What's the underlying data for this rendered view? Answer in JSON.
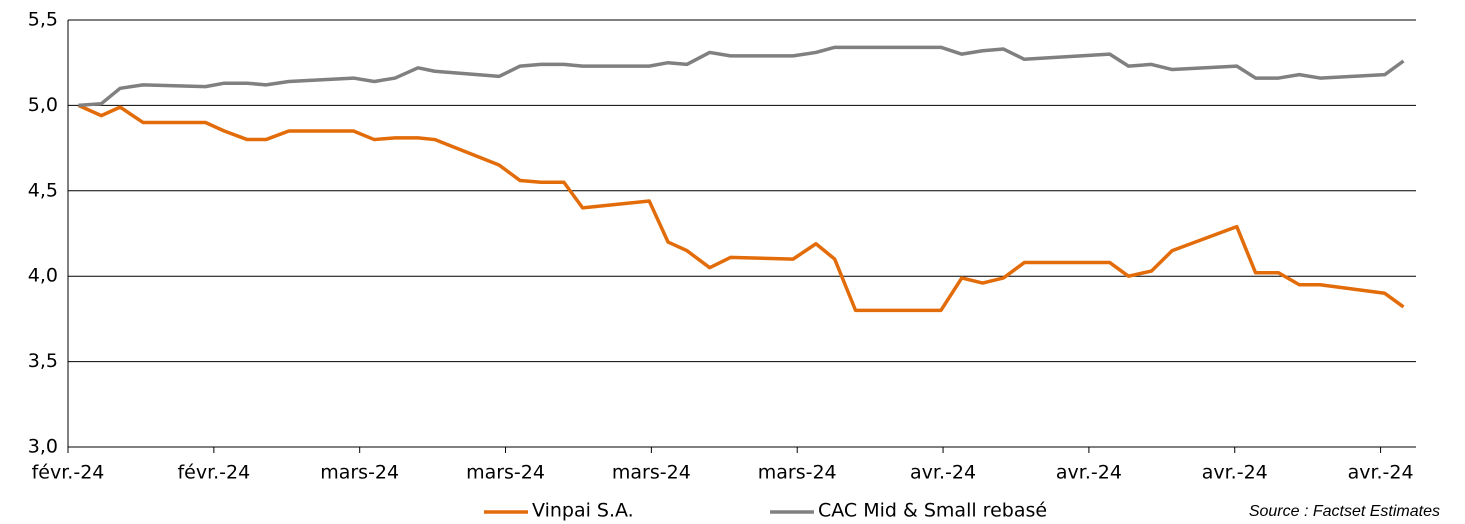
{
  "chart_data": {
    "type": "line",
    "x": [
      0.5,
      1.6,
      2.5,
      3.6,
      6.6,
      7.5,
      8.6,
      9.5,
      10.6,
      13.7,
      14.7,
      15.7,
      16.8,
      17.6,
      20.7,
      21.7,
      22.7,
      23.8,
      24.7,
      27.9,
      28.8,
      29.7,
      30.8,
      31.8,
      34.8,
      35.9,
      36.8,
      37.8,
      41.9,
      42.9,
      43.9,
      44.9,
      45.9,
      50.0,
      50.9,
      52.0,
      53.0,
      56.1,
      57.0,
      58.1,
      59.1,
      60.1,
      63.2,
      64.1
    ],
    "series": [
      {
        "name": "Vinpai S.A.",
        "color": "#e36c0a",
        "values": [
          5.0,
          4.94,
          4.99,
          4.9,
          4.9,
          4.85,
          4.8,
          4.8,
          4.85,
          4.85,
          4.8,
          4.81,
          4.81,
          4.8,
          4.65,
          4.56,
          4.55,
          4.55,
          4.4,
          4.44,
          4.2,
          4.15,
          4.05,
          4.11,
          4.1,
          4.19,
          4.1,
          3.8,
          3.8,
          3.99,
          3.96,
          3.99,
          4.08,
          4.08,
          4.0,
          4.03,
          4.15,
          4.29,
          4.02,
          4.02,
          3.95,
          3.95,
          3.9,
          3.82
        ]
      },
      {
        "name": "CAC Mid & Small rebasé",
        "color": "#808080",
        "values": [
          5.0,
          5.01,
          5.1,
          5.12,
          5.11,
          5.13,
          5.13,
          5.12,
          5.14,
          5.16,
          5.14,
          5.16,
          5.22,
          5.2,
          5.17,
          5.23,
          5.24,
          5.24,
          5.23,
          5.23,
          5.25,
          5.24,
          5.31,
          5.29,
          5.29,
          5.31,
          5.34,
          5.34,
          5.34,
          5.3,
          5.32,
          5.33,
          5.27,
          5.3,
          5.23,
          5.24,
          5.21,
          5.23,
          5.16,
          5.16,
          5.18,
          5.16,
          5.18,
          5.26
        ]
      }
    ],
    "xlim": [
      0,
      64.7
    ],
    "xticks": [
      {
        "value": 0,
        "label": "févr.-24"
      },
      {
        "value": 7,
        "label": "févr.-24"
      },
      {
        "value": 14,
        "label": "mars-24"
      },
      {
        "value": 21,
        "label": "mars-24"
      },
      {
        "value": 28,
        "label": "mars-24"
      },
      {
        "value": 35,
        "label": "mars-24"
      },
      {
        "value": 42,
        "label": "avr.-24"
      },
      {
        "value": 49,
        "label": "avr.-24"
      },
      {
        "value": 56,
        "label": "avr.-24"
      },
      {
        "value": 63,
        "label": "avr.-24"
      }
    ],
    "ylim": [
      3.0,
      5.5
    ],
    "yticks": [
      {
        "value": 3.0,
        "label": "3,0"
      },
      {
        "value": 3.5,
        "label": "3,5"
      },
      {
        "value": 4.0,
        "label": "4,0"
      },
      {
        "value": 4.5,
        "label": "4,5"
      },
      {
        "value": 5.0,
        "label": "5,0"
      },
      {
        "value": 5.5,
        "label": "5,5"
      }
    ],
    "grid": true,
    "legend": "bottom",
    "source": "Source : Factset Estimates"
  }
}
